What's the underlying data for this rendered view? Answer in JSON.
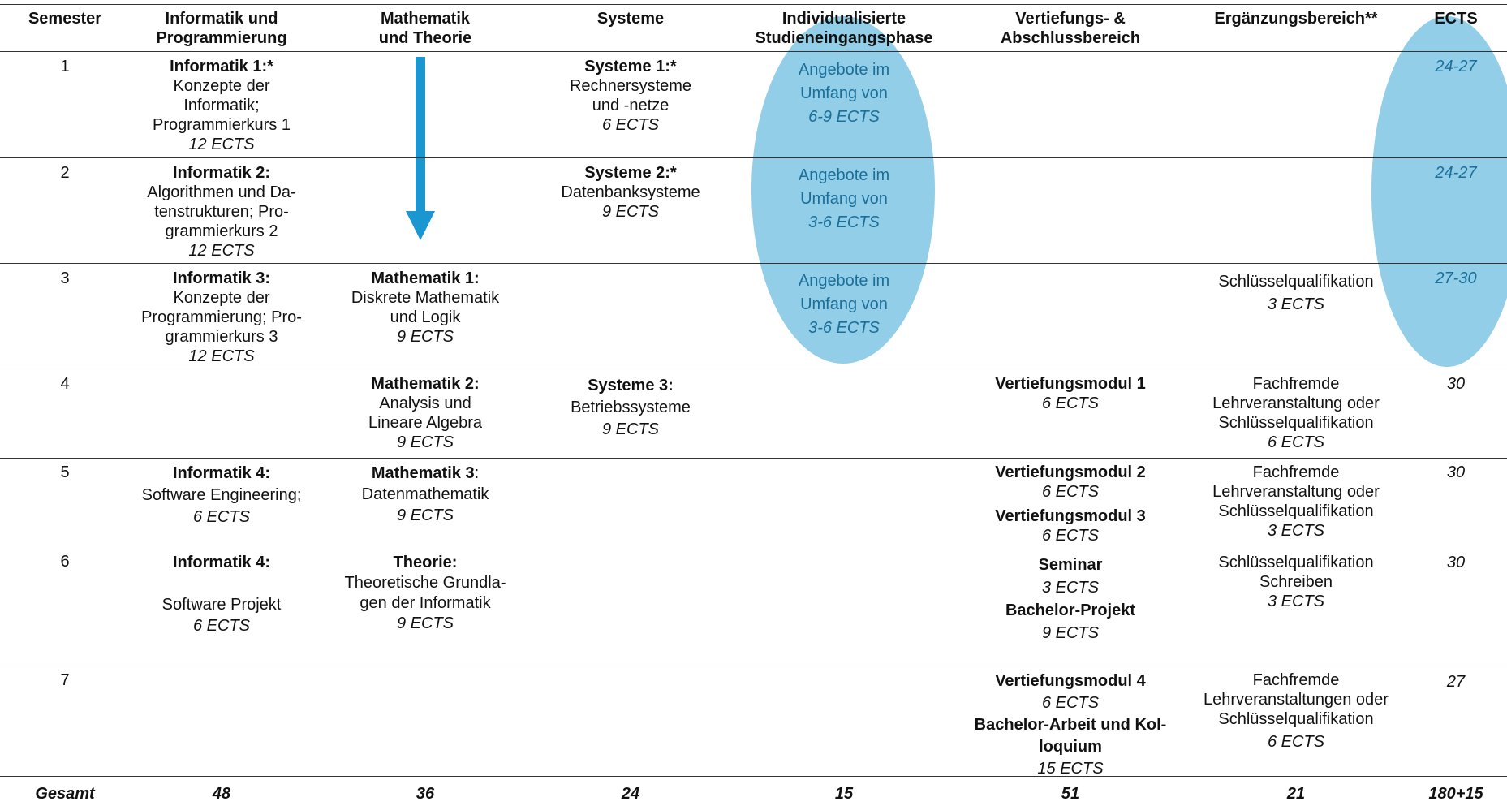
{
  "headers": [
    "Semester",
    "Informatik und Programmierung",
    "Mathematik und Theorie",
    "Systeme",
    "Individualisierte Studieneingangsphase",
    "Vertiefungs- & Abschlussbereich",
    "Ergänzungsbereich**",
    "ECTS"
  ],
  "header_lines": {
    "c1": [
      "Informatik und",
      "Programmierung"
    ],
    "c2": [
      "Mathematik",
      "und Theorie"
    ],
    "c4": [
      "Individualisierte",
      "Studieneingangsphase"
    ],
    "c5": [
      "Vertiefungs- &",
      "Abschlussbereich"
    ]
  },
  "rows": [
    {
      "sem": "1",
      "inf": {
        "title": "Informatik 1:*",
        "lines": [
          "Konzepte der",
          "Informatik;",
          "Programmierkurs 1"
        ],
        "ects": "12 ECTS"
      },
      "sys": {
        "title": "Systeme 1:*",
        "lines": [
          "Rechnersysteme",
          "und -netze"
        ],
        "ects": "6 ECTS"
      },
      "isp": {
        "lines": [
          "Angebote im",
          "Umfang von"
        ],
        "ects": "6-9 ECTS"
      },
      "ects": "24-27"
    },
    {
      "sem": "2",
      "inf": {
        "title": "Informatik 2:",
        "lines": [
          "Algorithmen und Da-",
          "tenstrukturen; Pro-",
          "grammierkurs 2"
        ],
        "ects": "12 ECTS"
      },
      "sys": {
        "title": "Systeme 2:*",
        "lines": [
          "Datenbanksysteme"
        ],
        "ects": "9 ECTS"
      },
      "isp": {
        "lines": [
          "Angebote im",
          "Umfang von"
        ],
        "ects": "3-6 ECTS"
      },
      "ects": "24-27"
    },
    {
      "sem": "3",
      "inf": {
        "title": "Informatik 3:",
        "lines": [
          "Konzepte der",
          "Programmierung; Pro-",
          "grammierkurs 3"
        ],
        "ects": "12 ECTS"
      },
      "math": {
        "title": "Mathematik 1:",
        "lines": [
          "Diskrete Mathematik",
          "und Logik"
        ],
        "ects": "9 ECTS"
      },
      "isp": {
        "lines": [
          "Angebote im",
          "Umfang von"
        ],
        "ects": "3-6 ECTS"
      },
      "erg": {
        "lines": [
          "Schlüsselqualifikation"
        ],
        "ects": "3 ECTS"
      },
      "ects": "27-30"
    },
    {
      "sem": "4",
      "math": {
        "title": "Mathematik 2:",
        "lines": [
          "Analysis und",
          "Lineare Algebra"
        ],
        "ects": "9 ECTS"
      },
      "sys": {
        "title": "Systeme 3:",
        "lines": [
          "Betriebssysteme"
        ],
        "ects": "9 ECTS"
      },
      "vert": [
        {
          "title": "Vertiefungsmodul 1",
          "ects": "6 ECTS"
        }
      ],
      "erg": {
        "lines": [
          "Fachfremde",
          "Lehrveranstaltung oder",
          "Schlüsselqualifikation"
        ],
        "ects": "6 ECTS"
      },
      "ects": "30"
    },
    {
      "sem": "5",
      "inf": {
        "title": "Informatik 4:",
        "lines": [
          "Software Engineering;"
        ],
        "ects": "6 ECTS"
      },
      "math": {
        "title": "Mathematik 3",
        "title_suffix": ":",
        "lines": [
          "Datenmathematik"
        ],
        "ects": "9 ECTS"
      },
      "vert": [
        {
          "title": "Vertiefungsmodul 2",
          "ects": "6 ECTS"
        },
        {
          "title": "Vertiefungsmodul 3",
          "ects": "6 ECTS"
        }
      ],
      "erg": {
        "lines": [
          "Fachfremde",
          "Lehrveranstaltung oder",
          "Schlüsselqualifikation"
        ],
        "ects": "3 ECTS"
      },
      "ects": "30"
    },
    {
      "sem": "6",
      "inf": {
        "title": "Informatik 4:",
        "lines": [
          "Software Projekt"
        ],
        "ects": "6 ECTS"
      },
      "math": {
        "title": "Theorie:",
        "lines": [
          "Theoretische Grundla-",
          "gen der Informatik"
        ],
        "ects": "9 ECTS"
      },
      "vert": [
        {
          "title": "Seminar",
          "ects": "3 ECTS"
        },
        {
          "title": "Bachelor-Projekt",
          "ects": "9 ECTS"
        }
      ],
      "erg": {
        "lines": [
          "Schlüsselqualifikation",
          "Schreiben"
        ],
        "ects": "3 ECTS"
      },
      "ects": "30"
    },
    {
      "sem": "7",
      "vert": [
        {
          "title": "Vertiefungsmodul 4",
          "ects": "6 ECTS"
        },
        {
          "title": "Bachelor-Arbeit und Kol-",
          "title2": "loquium",
          "ects": "15 ECTS"
        }
      ],
      "erg": {
        "lines": [
          "Fachfremde",
          "Lehrveranstaltungen oder",
          "Schlüsselqualifikation"
        ],
        "ects": "6 ECTS"
      },
      "ects": "27"
    }
  ],
  "totals": {
    "label": "Gesamt",
    "inf": "48",
    "math": "36",
    "sys": "24",
    "isp": "15",
    "vert": "51",
    "erg": "21",
    "ects": "180+15"
  },
  "colors": {
    "highlight": "#8ccbe6",
    "arrow": "#1a96d0",
    "blue_text": "#1a6f9a"
  }
}
